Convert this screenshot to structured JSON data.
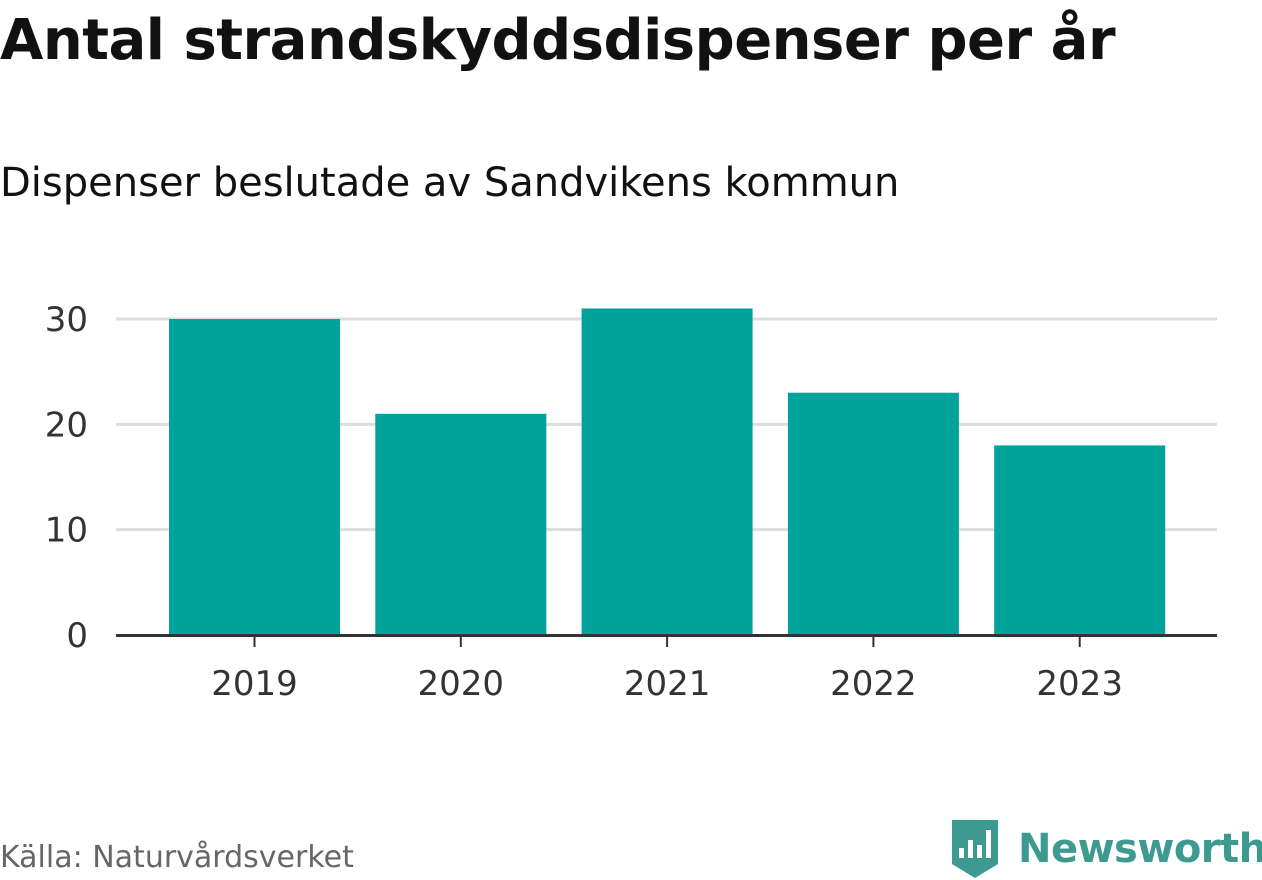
{
  "header": {
    "title": "Antal strandskyddsdispenser per år",
    "subtitle": "Dispenser beslutade av Sandvikens kommun"
  },
  "footer": {
    "source": "Källa: Naturvårdsverket",
    "brand": "Newsworthy"
  },
  "colors": {
    "bar": "#00a39a",
    "grid": "#dddddd",
    "axis": "#333333",
    "tick_text": "#333333",
    "brand": "#3c9a91"
  },
  "icons": {
    "brand_logo": "bar-chart-flag-icon"
  },
  "chart_data": {
    "type": "bar",
    "title": "Antal strandskyddsdispenser per år",
    "subtitle": "Dispenser beslutade av Sandvikens kommun",
    "categories": [
      "2019",
      "2020",
      "2021",
      "2022",
      "2023"
    ],
    "values": [
      30,
      21,
      31,
      23,
      18
    ],
    "xlabel": "",
    "ylabel": "",
    "ylim": [
      0,
      30
    ],
    "yticks": [
      0,
      10,
      20,
      30
    ],
    "grid": true,
    "legend": "none"
  }
}
